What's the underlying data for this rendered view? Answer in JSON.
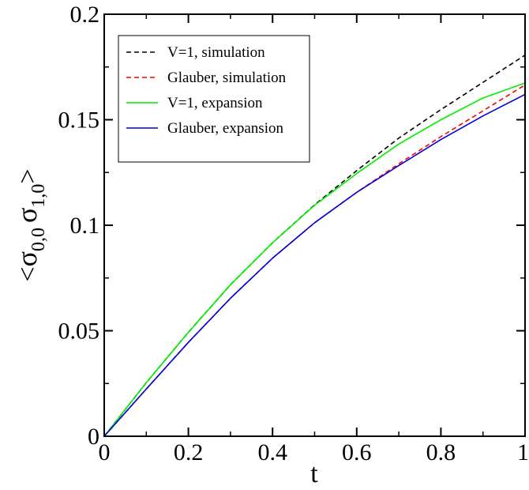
{
  "chart_data": {
    "type": "line",
    "xlabel": "t",
    "ylabel": {
      "open": "<",
      "s1": "σ",
      "sub1": "0,0",
      "s2": "σ",
      "sub2": "1,0",
      "close": ">"
    },
    "xlim": [
      0,
      1
    ],
    "ylim": [
      0,
      0.2
    ],
    "xticks": [
      "0",
      "0.2",
      "0.4",
      "0.6",
      "0.8",
      "1"
    ],
    "yticks": [
      "0",
      "0.05",
      "0.1",
      "0.15",
      "0.2"
    ],
    "legend_position": "top-left",
    "grid": false,
    "series": [
      {
        "name": "V=1, simulation",
        "color": "#000000",
        "style": "dashed",
        "x": [
          0,
          0.1,
          0.2,
          0.3,
          0.4,
          0.5,
          0.6,
          0.7,
          0.8,
          0.9,
          1.0
        ],
        "y": [
          0,
          0.0254,
          0.0493,
          0.0718,
          0.0917,
          0.1097,
          0.1259,
          0.1413,
          0.1548,
          0.1677,
          0.1806
        ]
      },
      {
        "name": "Glauber, simulation",
        "color": "#ff0000",
        "style": "dashed",
        "x": [
          0,
          0.1,
          0.2,
          0.3,
          0.4,
          0.5,
          0.6,
          0.7,
          0.8,
          0.9,
          1.0
        ],
        "y": [
          0,
          0.0224,
          0.0445,
          0.0654,
          0.0844,
          0.1012,
          0.1156,
          0.1291,
          0.142,
          0.1542,
          0.1665
        ]
      },
      {
        "name": "V=1, expansion",
        "color": "#00ee00",
        "style": "solid",
        "x": [
          0,
          0.1,
          0.2,
          0.3,
          0.4,
          0.5,
          0.6,
          0.7,
          0.8,
          0.9,
          1.0
        ],
        "y": [
          0,
          0.0254,
          0.0493,
          0.0718,
          0.0917,
          0.1095,
          0.1245,
          0.1385,
          0.15,
          0.1603,
          0.1674
        ]
      },
      {
        "name": "Glauber, expansion",
        "color": "#0000dd",
        "style": "solid",
        "x": [
          0,
          0.1,
          0.2,
          0.3,
          0.4,
          0.5,
          0.6,
          0.7,
          0.8,
          0.9,
          1.0
        ],
        "y": [
          0,
          0.0224,
          0.0445,
          0.0654,
          0.0844,
          0.1012,
          0.1156,
          0.1283,
          0.1406,
          0.1518,
          0.162
        ]
      }
    ]
  }
}
